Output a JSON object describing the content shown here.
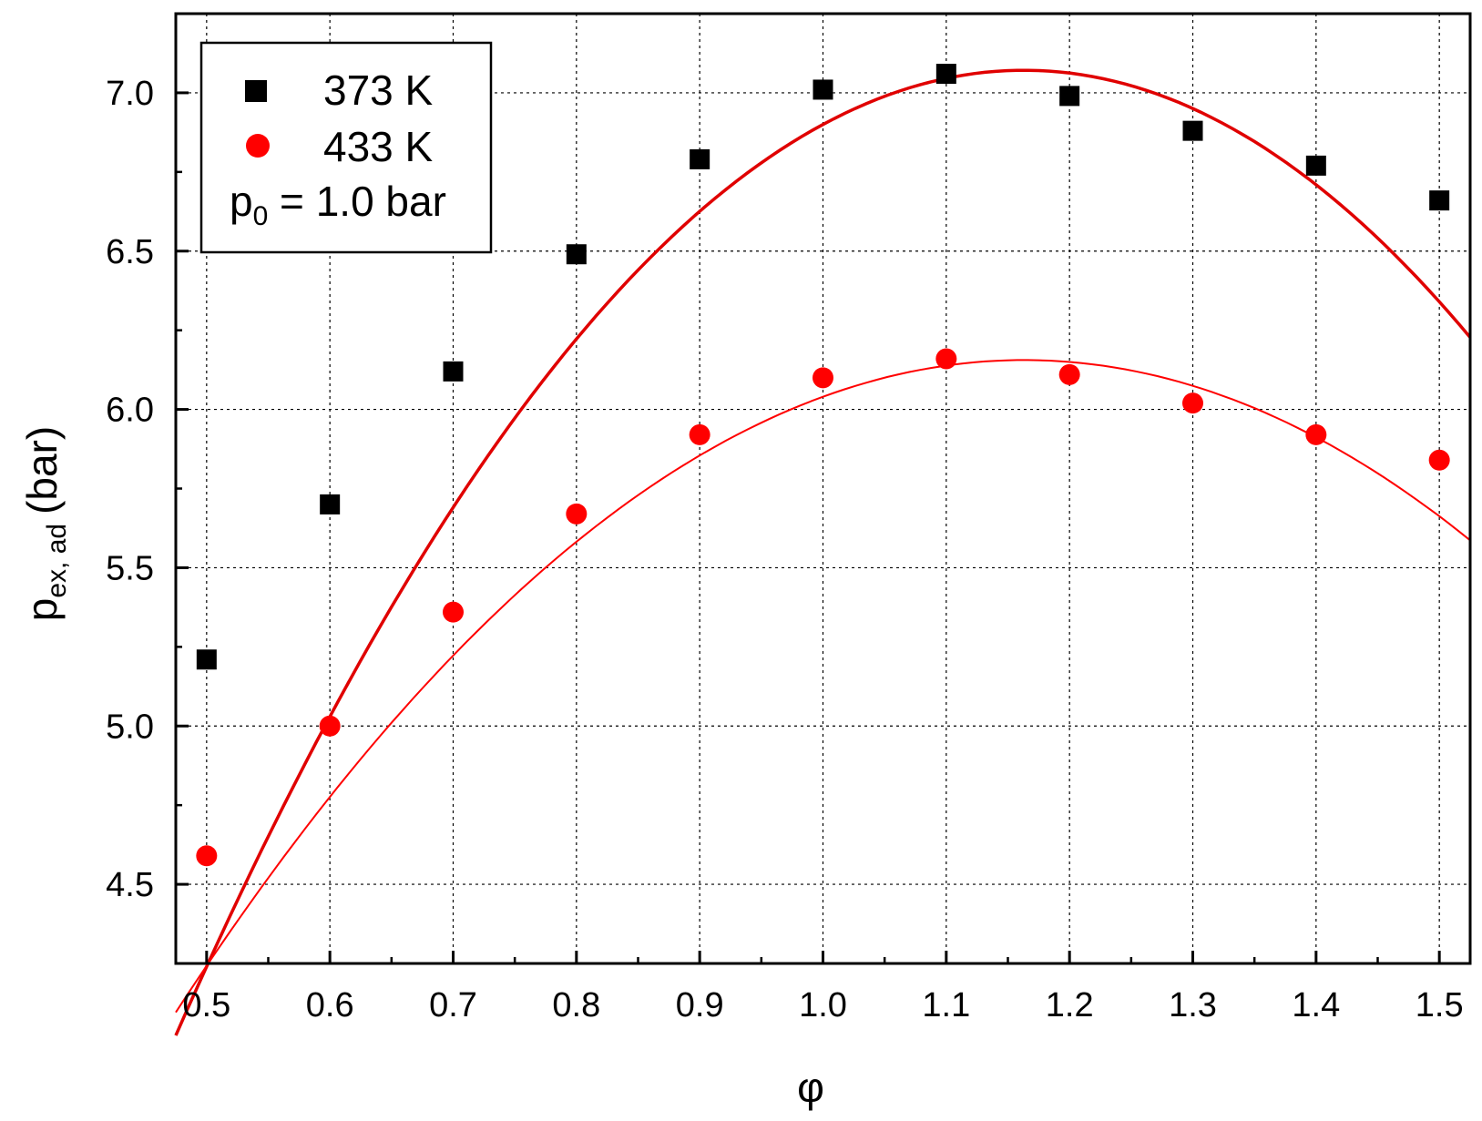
{
  "chart_data": {
    "type": "scatter",
    "xlabel": "φ",
    "ylabel": {
      "main": "p",
      "sub": "ex, ad",
      "unit": "(bar)"
    },
    "xlim": [
      0.475,
      1.525
    ],
    "ylim": [
      4.25,
      7.25
    ],
    "x_ticks": [
      "0.5",
      "0.6",
      "0.7",
      "0.8",
      "0.9",
      "1.0",
      "1.1",
      "1.2",
      "1.3",
      "1.4",
      "1.5"
    ],
    "y_ticks": [
      "4.5",
      "5.0",
      "5.5",
      "6.0",
      "6.5",
      "7.0"
    ],
    "grid": true,
    "legend_position": "top-left",
    "legend_note": {
      "main": "p",
      "sub": "0",
      "rest": " = 1.0 bar"
    },
    "series": [
      {
        "name": "373 K",
        "marker": "square",
        "color": "#000000",
        "x": [
          0.5,
          0.6,
          0.7,
          0.8,
          0.9,
          1.0,
          1.1,
          1.2,
          1.3,
          1.4,
          1.5
        ],
        "y": [
          5.21,
          5.7,
          6.12,
          6.49,
          6.79,
          7.01,
          7.06,
          6.99,
          6.88,
          6.77,
          6.66
        ],
        "fit": {
          "color": "#e00000",
          "x": [
            0.475,
            1.525
          ],
          "coeffs": [
            -1.64,
            14.98,
            -6.44
          ]
        }
      },
      {
        "name": "433 K",
        "marker": "circle",
        "color": "#ff0000",
        "x": [
          0.5,
          0.6,
          0.7,
          0.8,
          0.9,
          1.0,
          1.1,
          1.2,
          1.3,
          1.4,
          1.5
        ],
        "y": [
          4.59,
          5.0,
          5.36,
          5.67,
          5.92,
          6.1,
          6.16,
          6.11,
          6.02,
          5.92,
          5.84
        ],
        "fit": {
          "color": "#ff0000",
          "x": [
            0.475,
            1.525
          ],
          "coeffs": [
            0.27,
            10.12,
            -4.35
          ]
        }
      }
    ]
  }
}
